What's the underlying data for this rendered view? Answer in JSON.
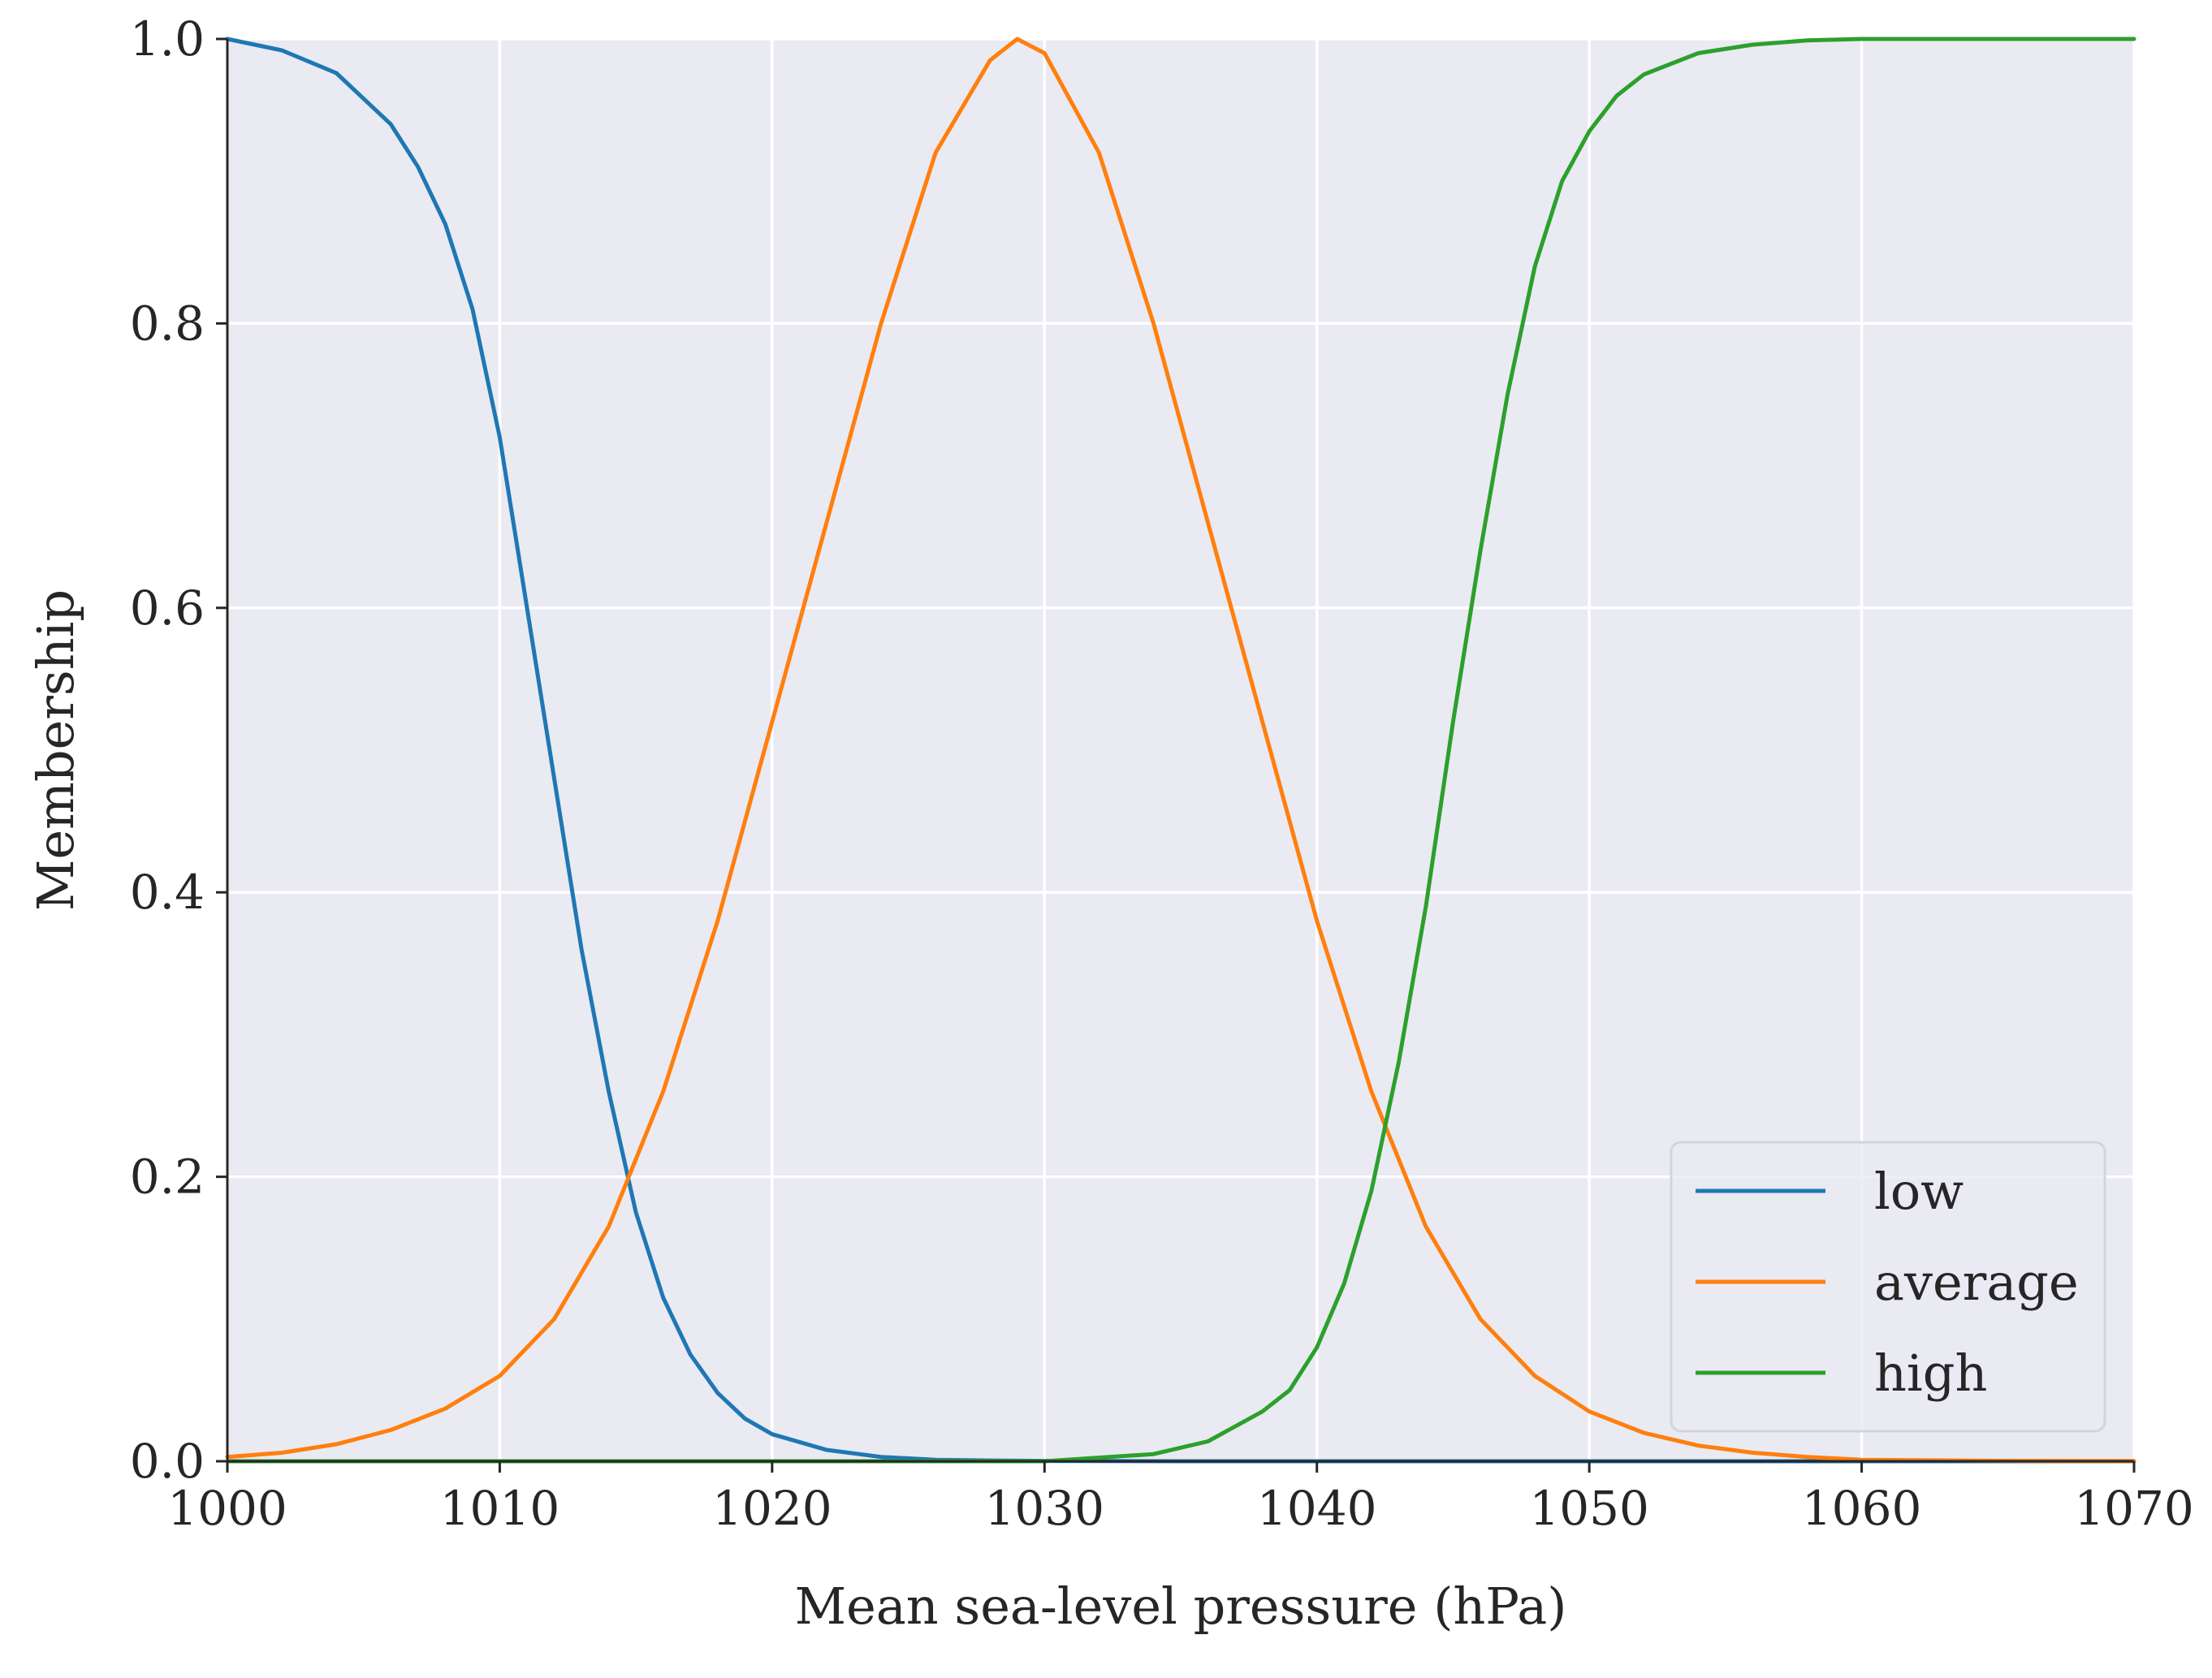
{
  "chart_data": {
    "type": "line",
    "title": "",
    "xlabel": "Mean sea-level pressure (hPa)",
    "ylabel": "Membership",
    "xlim": [
      1000,
      1070
    ],
    "ylim": [
      0,
      1
    ],
    "x_ticks": [
      1000,
      1010,
      1020,
      1030,
      1040,
      1050,
      1060,
      1070
    ],
    "x_tick_labels": [
      "1000",
      "1010",
      "1020",
      "1030",
      "1040",
      "1050",
      "1060",
      "1070"
    ],
    "y_ticks": [
      0.0,
      0.2,
      0.4,
      0.6,
      0.8,
      1.0
    ],
    "y_tick_labels": [
      "0.0",
      "0.2",
      "0.4",
      "0.6",
      "0.8",
      "1.0"
    ],
    "grid": true,
    "background": "#eaeaf2",
    "legend": {
      "position": "lower-right"
    },
    "series": [
      {
        "name": "low",
        "color": "#1f77b4",
        "x": [
          1000,
          1002,
          1004,
          1006,
          1007,
          1008,
          1009,
          1010,
          1011,
          1012,
          1013,
          1014,
          1015,
          1016,
          1017,
          1018,
          1019,
          1020,
          1022,
          1024,
          1026,
          1028,
          1030,
          1035,
          1040,
          1050,
          1060,
          1070
        ],
        "y": [
          1.0,
          0.992,
          0.976,
          0.94,
          0.91,
          0.87,
          0.81,
          0.72,
          0.6,
          0.48,
          0.36,
          0.26,
          0.175,
          0.115,
          0.075,
          0.048,
          0.03,
          0.019,
          0.008,
          0.003,
          0.001,
          0.0005,
          0.0002,
          0.0,
          0.0,
          0.0,
          0.0,
          0.0
        ]
      },
      {
        "name": "average",
        "color": "#ff7f0e",
        "x": [
          1000,
          1002,
          1004,
          1006,
          1008,
          1010,
          1012,
          1014,
          1016,
          1018,
          1020,
          1022,
          1024,
          1026,
          1028,
          1029,
          1030,
          1032,
          1034,
          1036,
          1038,
          1040,
          1042,
          1044,
          1046,
          1048,
          1050,
          1052,
          1054,
          1056,
          1058,
          1060,
          1065,
          1070
        ],
        "y": [
          0.003,
          0.006,
          0.012,
          0.022,
          0.037,
          0.06,
          0.1,
          0.165,
          0.26,
          0.38,
          0.52,
          0.66,
          0.8,
          0.92,
          0.985,
          1.0,
          0.99,
          0.92,
          0.8,
          0.66,
          0.52,
          0.38,
          0.26,
          0.165,
          0.1,
          0.06,
          0.035,
          0.02,
          0.011,
          0.006,
          0.003,
          0.001,
          0.0003,
          0.0001
        ]
      },
      {
        "name": "high",
        "color": "#2ca02c",
        "x": [
          1000,
          1020,
          1030,
          1034,
          1036,
          1038,
          1039,
          1040,
          1041,
          1042,
          1043,
          1044,
          1045,
          1046,
          1047,
          1048,
          1049,
          1050,
          1051,
          1052,
          1054,
          1056,
          1058,
          1060,
          1065,
          1070
        ],
        "y": [
          0.0,
          0.0,
          0.0,
          0.005,
          0.014,
          0.035,
          0.05,
          0.08,
          0.125,
          0.19,
          0.28,
          0.39,
          0.52,
          0.64,
          0.75,
          0.84,
          0.9,
          0.935,
          0.96,
          0.975,
          0.99,
          0.996,
          0.999,
          1.0,
          1.0,
          1.0
        ]
      }
    ]
  }
}
